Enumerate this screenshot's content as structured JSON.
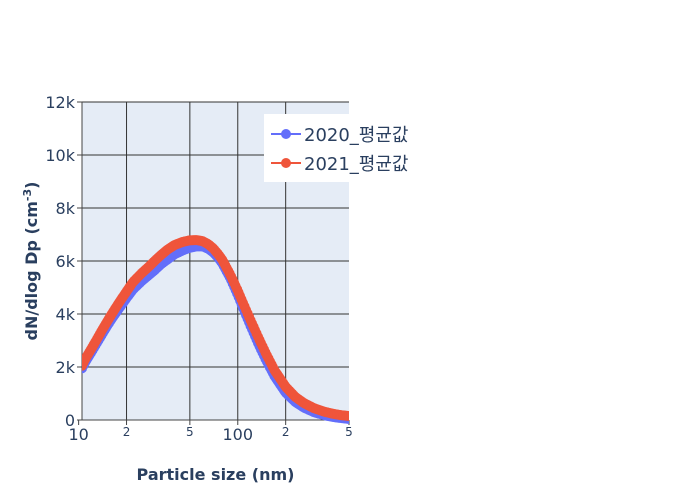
{
  "chart_data": {
    "type": "line",
    "title": "",
    "xlabel": "Particle size (nm)",
    "ylabel": "dN/dlog Dp (cm",
    "ylabel_sup": "-3",
    "ylabel_close": ")",
    "x_scale": "log",
    "xlim": [
      10.5,
      500
    ],
    "ylim": [
      0,
      12000
    ],
    "x_ticks": [
      {
        "value": 10,
        "label": "10",
        "major": true
      },
      {
        "value": 20,
        "label": "2",
        "major": false
      },
      {
        "value": 50,
        "label": "5",
        "major": false
      },
      {
        "value": 100,
        "label": "100",
        "major": true
      },
      {
        "value": 200,
        "label": "2",
        "major": false
      },
      {
        "value": 500,
        "label": "5",
        "major": false
      }
    ],
    "y_ticks": [
      {
        "value": 0,
        "label": "0"
      },
      {
        "value": 2000,
        "label": "2k"
      },
      {
        "value": 4000,
        "label": "4k"
      },
      {
        "value": 6000,
        "label": "6k"
      },
      {
        "value": 8000,
        "label": "8k"
      },
      {
        "value": 10000,
        "label": "10k"
      },
      {
        "value": 12000,
        "label": "12k"
      }
    ],
    "grid": true,
    "legend_position": "top-right",
    "series": [
      {
        "name": "2020_평균값",
        "color": "#636efa",
        "x": [
          10.5,
          11,
          12,
          13,
          14,
          15,
          16,
          17,
          18,
          20,
          22,
          25,
          28,
          30,
          33,
          36,
          40,
          45,
          50,
          55,
          60,
          65,
          70,
          75,
          80,
          90,
          100,
          110,
          120,
          135,
          150,
          170,
          200,
          230,
          260,
          300,
          350,
          400,
          450,
          500
        ],
        "y": [
          1950,
          2180,
          2550,
          2900,
          3220,
          3520,
          3780,
          4010,
          4220,
          4600,
          4930,
          5250,
          5500,
          5650,
          5880,
          6050,
          6250,
          6400,
          6500,
          6550,
          6550,
          6470,
          6330,
          6140,
          5910,
          5340,
          4720,
          4110,
          3570,
          2860,
          2280,
          1660,
          1030,
          680,
          470,
          300,
          180,
          110,
          70,
          40
        ]
      },
      {
        "name": "2021_평균값",
        "color": "#ef553b",
        "x": [
          10.5,
          11,
          12,
          13,
          14,
          15,
          16,
          17,
          18,
          20,
          22,
          25,
          28,
          30,
          33,
          36,
          40,
          45,
          50,
          55,
          60,
          65,
          70,
          75,
          80,
          90,
          100,
          110,
          120,
          135,
          150,
          170,
          200,
          230,
          260,
          300,
          350,
          400,
          450,
          500
        ],
        "y": [
          2050,
          2300,
          2680,
          3040,
          3380,
          3680,
          3960,
          4210,
          4440,
          4850,
          5210,
          5550,
          5820,
          6000,
          6230,
          6420,
          6600,
          6720,
          6780,
          6790,
          6750,
          6640,
          6480,
          6270,
          6040,
          5470,
          4880,
          4300,
          3780,
          3100,
          2520,
          1880,
          1250,
          870,
          640,
          450,
          310,
          230,
          180,
          150
        ]
      }
    ]
  }
}
